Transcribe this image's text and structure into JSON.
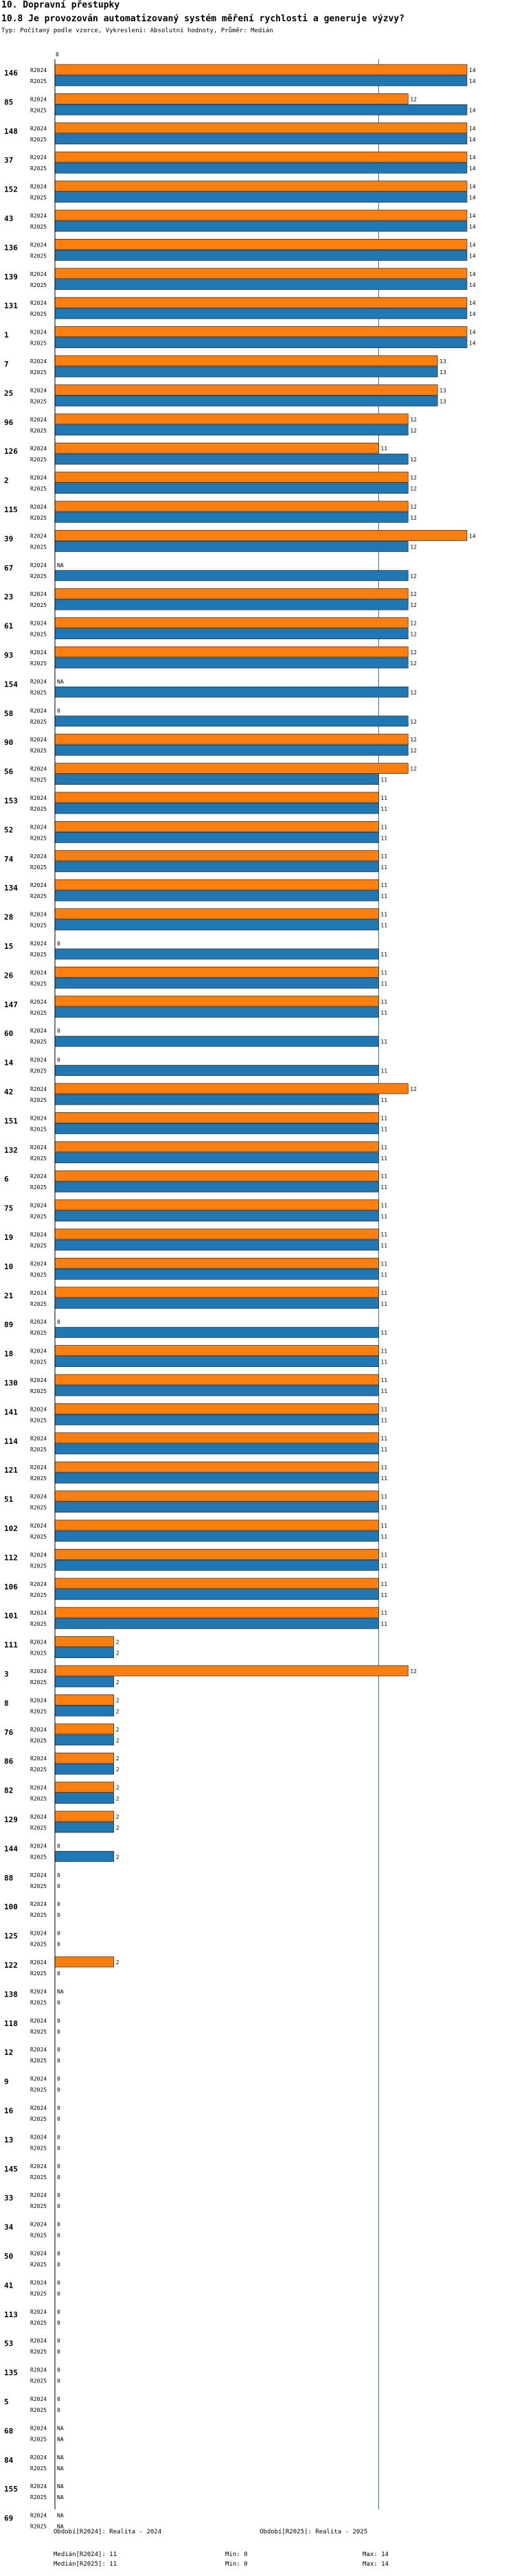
{
  "header": {
    "section": "10. Dopravní přestupky",
    "question": "10.8 Je provozován automatizovaný systém měření rychlosti a generuje výzvy?",
    "meta": "Typ: Počítaný podle vzorce, Vykreslení: Absolutní hodnoty, Průměr: Medián"
  },
  "colors": {
    "r2024": "#ff7f0e",
    "r2025": "#1f77b4",
    "median_line": "#1f77b4"
  },
  "chart_data": {
    "type": "bar",
    "orientation": "horizontal",
    "series": [
      {
        "name": "R2024",
        "label": "Období[R2024]: Realita - 2024"
      },
      {
        "name": "R2025",
        "label": "Období[R2025]: Realita - 2025"
      }
    ],
    "x_range": [
      0,
      14
    ],
    "median_value": 11,
    "axis_zero_label": "0",
    "missing_label": "NA",
    "rows": [
      {
        "id": "146",
        "r2024": 14,
        "r2025": 14
      },
      {
        "id": "85",
        "r2024": 12,
        "r2025": 14
      },
      {
        "id": "148",
        "r2024": 14,
        "r2025": 14
      },
      {
        "id": "37",
        "r2024": 14,
        "r2025": 14
      },
      {
        "id": "152",
        "r2024": 14,
        "r2025": 14
      },
      {
        "id": "43",
        "r2024": 14,
        "r2025": 14
      },
      {
        "id": "136",
        "r2024": 14,
        "r2025": 14
      },
      {
        "id": "139",
        "r2024": 14,
        "r2025": 14
      },
      {
        "id": "131",
        "r2024": 14,
        "r2025": 14
      },
      {
        "id": "1",
        "r2024": 14,
        "r2025": 14
      },
      {
        "id": "7",
        "r2024": 13,
        "r2025": 13
      },
      {
        "id": "25",
        "r2024": 13,
        "r2025": 13
      },
      {
        "id": "96",
        "r2024": 12,
        "r2025": 12
      },
      {
        "id": "126",
        "r2024": 11,
        "r2025": 12
      },
      {
        "id": "2",
        "r2024": 12,
        "r2025": 12
      },
      {
        "id": "115",
        "r2024": 12,
        "r2025": 12
      },
      {
        "id": "39",
        "r2024": 14,
        "r2025": 12
      },
      {
        "id": "67",
        "r2024": null,
        "r2025": 12
      },
      {
        "id": "23",
        "r2024": 12,
        "r2025": 12
      },
      {
        "id": "61",
        "r2024": 12,
        "r2025": 12
      },
      {
        "id": "93",
        "r2024": 12,
        "r2025": 12
      },
      {
        "id": "154",
        "r2024": null,
        "r2025": 12
      },
      {
        "id": "58",
        "r2024": 0,
        "r2025": 12
      },
      {
        "id": "90",
        "r2024": 12,
        "r2025": 12
      },
      {
        "id": "56",
        "r2024": 12,
        "r2025": 11
      },
      {
        "id": "153",
        "r2024": 11,
        "r2025": 11
      },
      {
        "id": "52",
        "r2024": 11,
        "r2025": 11
      },
      {
        "id": "74",
        "r2024": 11,
        "r2025": 11
      },
      {
        "id": "134",
        "r2024": 11,
        "r2025": 11
      },
      {
        "id": "28",
        "r2024": 11,
        "r2025": 11
      },
      {
        "id": "15",
        "r2024": 0,
        "r2025": 11
      },
      {
        "id": "26",
        "r2024": 11,
        "r2025": 11
      },
      {
        "id": "147",
        "r2024": 11,
        "r2025": 11
      },
      {
        "id": "60",
        "r2024": 0,
        "r2025": 11
      },
      {
        "id": "14",
        "r2024": 0,
        "r2025": 11
      },
      {
        "id": "42",
        "r2024": 12,
        "r2025": 11
      },
      {
        "id": "151",
        "r2024": 11,
        "r2025": 11
      },
      {
        "id": "132",
        "r2024": 11,
        "r2025": 11
      },
      {
        "id": "6",
        "r2024": 11,
        "r2025": 11
      },
      {
        "id": "75",
        "r2024": 11,
        "r2025": 11
      },
      {
        "id": "19",
        "r2024": 11,
        "r2025": 11
      },
      {
        "id": "10",
        "r2024": 11,
        "r2025": 11
      },
      {
        "id": "21",
        "r2024": 11,
        "r2025": 11
      },
      {
        "id": "89",
        "r2024": 0,
        "r2025": 11
      },
      {
        "id": "18",
        "r2024": 11,
        "r2025": 11
      },
      {
        "id": "130",
        "r2024": 11,
        "r2025": 11
      },
      {
        "id": "141",
        "r2024": 11,
        "r2025": 11
      },
      {
        "id": "114",
        "r2024": 11,
        "r2025": 11
      },
      {
        "id": "121",
        "r2024": 11,
        "r2025": 11
      },
      {
        "id": "51",
        "r2024": 11,
        "r2025": 11
      },
      {
        "id": "102",
        "r2024": 11,
        "r2025": 11
      },
      {
        "id": "112",
        "r2024": 11,
        "r2025": 11
      },
      {
        "id": "106",
        "r2024": 11,
        "r2025": 11
      },
      {
        "id": "101",
        "r2024": 11,
        "r2025": 11
      },
      {
        "id": "111",
        "r2024": 2,
        "r2025": 2
      },
      {
        "id": "3",
        "r2024": 12,
        "r2025": 2
      },
      {
        "id": "8",
        "r2024": 2,
        "r2025": 2
      },
      {
        "id": "76",
        "r2024": 2,
        "r2025": 2
      },
      {
        "id": "86",
        "r2024": 2,
        "r2025": 2
      },
      {
        "id": "82",
        "r2024": 2,
        "r2025": 2
      },
      {
        "id": "129",
        "r2024": 2,
        "r2025": 2
      },
      {
        "id": "144",
        "r2024": 0,
        "r2025": 2
      },
      {
        "id": "88",
        "r2024": 0,
        "r2025": 0
      },
      {
        "id": "100",
        "r2024": 0,
        "r2025": 0
      },
      {
        "id": "125",
        "r2024": 0,
        "r2025": 0
      },
      {
        "id": "122",
        "r2024": 2,
        "r2025": 0
      },
      {
        "id": "138",
        "r2024": null,
        "r2025": 0
      },
      {
        "id": "118",
        "r2024": 0,
        "r2025": 0
      },
      {
        "id": "12",
        "r2024": 0,
        "r2025": 0
      },
      {
        "id": "9",
        "r2024": 0,
        "r2025": 0
      },
      {
        "id": "16",
        "r2024": 0,
        "r2025": 0
      },
      {
        "id": "13",
        "r2024": 0,
        "r2025": 0
      },
      {
        "id": "145",
        "r2024": 0,
        "r2025": 0
      },
      {
        "id": "33",
        "r2024": 0,
        "r2025": 0
      },
      {
        "id": "34",
        "r2024": 0,
        "r2025": 0
      },
      {
        "id": "50",
        "r2024": 0,
        "r2025": 0
      },
      {
        "id": "41",
        "r2024": 0,
        "r2025": 0
      },
      {
        "id": "113",
        "r2024": 0,
        "r2025": 0
      },
      {
        "id": "53",
        "r2024": 0,
        "r2025": 0
      },
      {
        "id": "135",
        "r2024": 0,
        "r2025": 0
      },
      {
        "id": "5",
        "r2024": 0,
        "r2025": 0
      },
      {
        "id": "68",
        "r2024": null,
        "r2025": null
      },
      {
        "id": "84",
        "r2024": null,
        "r2025": null
      },
      {
        "id": "155",
        "r2024": null,
        "r2025": null
      },
      {
        "id": "69",
        "r2024": null,
        "r2025": null
      }
    ]
  },
  "footer": {
    "legend_r2024": "Období[R2024]: Realita - 2024",
    "legend_r2025": "Období[R2025]: Realita - 2025",
    "median_r2024": "Medián[R2024]: 11",
    "median_r2025": "Medián[R2025]: 11",
    "min_r2024": "Min: 0",
    "min_r2025": "Min: 0",
    "max_r2024": "Max: 14",
    "max_r2025": "Max: 14"
  }
}
